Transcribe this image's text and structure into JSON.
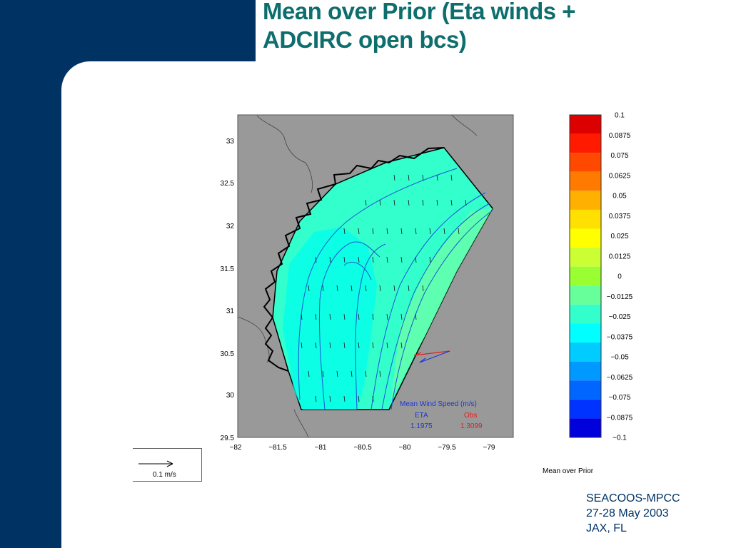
{
  "slide": {
    "title_lines": [
      "Mean over Prior (Eta winds +",
      "ADCIRC open bcs)"
    ],
    "footer_lines": [
      "SEACOOS-MPCC",
      "27-28 May 2003",
      "JAX, FL"
    ]
  },
  "map": {
    "y_ticks": [
      "33",
      "32.5",
      "32",
      "31.5",
      "31",
      "30.5",
      "30",
      "29.5"
    ],
    "x_ticks": [
      "−82",
      "−81.5",
      "−81",
      "−80.5",
      "−80",
      "−79.5",
      "−79"
    ],
    "legend": {
      "title": "Mean Wind Speed (m/s)",
      "eta_label": "ETA",
      "eta_value": "1.1975",
      "obs_label": "Obs",
      "obs_value": "1.3099"
    },
    "scale_label": "0.1 m/s",
    "colors": {
      "land": "#999999",
      "water_shallow": "#33ffcc",
      "water_mid": "#66ffaa",
      "contour": "#1b55d6",
      "obs": "#e02020"
    }
  },
  "colorbar": {
    "labels": [
      "0.1",
      "0.0875",
      "0.075",
      "0.0625",
      "0.05",
      "0.0375",
      "0.025",
      "0.0125",
      "0",
      "−0.0125",
      "−0.025",
      "−0.0375",
      "−0.05",
      "−0.0625",
      "−0.075",
      "−0.0875",
      "−0.1"
    ],
    "colors": [
      "#dd0000",
      "#ff1a00",
      "#ff4800",
      "#ff7a00",
      "#ffb000",
      "#ffe000",
      "#ffff00",
      "#ccff33",
      "#99ff33",
      "#66ff99",
      "#33ffcc",
      "#00ffff",
      "#00ccff",
      "#0099ff",
      "#0066ff",
      "#0033ff",
      "#0000dd"
    ],
    "caption": "Mean over Prior"
  }
}
